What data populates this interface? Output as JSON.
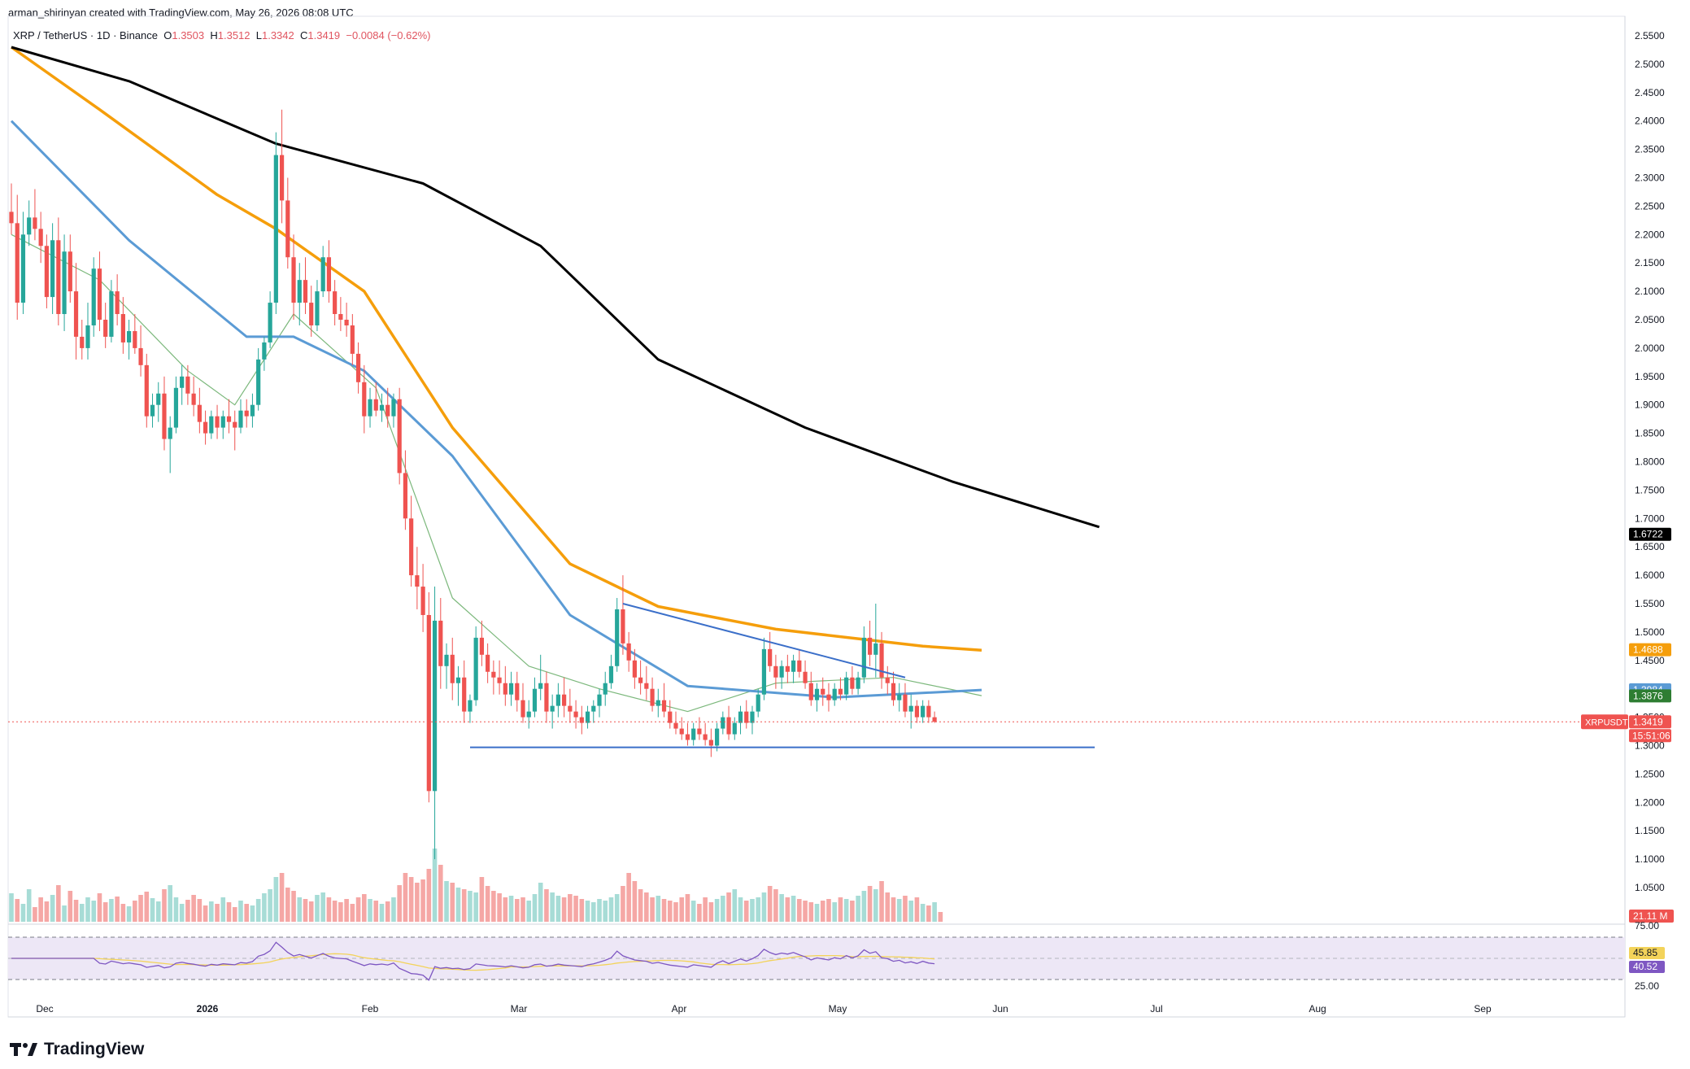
{
  "header": {
    "credit": "arman_shirinyan created with TradingView.com, May 26, 2026 08:08 UTC",
    "symbol_line": "XRP / TetherUS · 1D · Binance",
    "o_label": "O",
    "o_value": "1.3503",
    "h_label": "H",
    "h_value": "1.3512",
    "l_label": "L",
    "l_value": "1.3342",
    "c_label": "C",
    "c_value": "1.3419",
    "change": "−0.0084 (−0.62%)"
  },
  "brand": {
    "name": "TradingView",
    "icon": "tradingview-logo-icon"
  },
  "colors": {
    "up": "#26a69a",
    "down": "#ef5350",
    "up_vol": "#a7dcd6",
    "down_vol": "#f5a7a5",
    "sma200": "#000000",
    "sma100": "#f59e0b",
    "sma50": "#5b9bd5",
    "sma20": "#7cb87c",
    "trendline": "#3b6fc9",
    "rsi": "#7e57c2",
    "rsi_ma": "#f3d35a",
    "rsi_band": "#ede7f6"
  },
  "chart_data": {
    "type": "candlestick",
    "symbol": "XRPUSDT",
    "timeframe": "1D",
    "x_ticks": [
      "Dec",
      "2026",
      "Feb",
      "Mar",
      "Apr",
      "May",
      "Jun",
      "Jul",
      "Aug",
      "Sep"
    ],
    "y_ticks": [
      "2.5500",
      "2.5000",
      "2.4500",
      "2.4000",
      "2.3500",
      "2.3000",
      "2.2500",
      "2.2000",
      "2.1500",
      "2.1000",
      "2.0500",
      "2.0000",
      "1.9500",
      "1.9000",
      "1.8500",
      "1.8000",
      "1.7500",
      "1.7000",
      "1.6500",
      "1.6000",
      "1.5500",
      "1.5000",
      "1.4500",
      "1.4000",
      "1.3500",
      "1.3000",
      "1.2500",
      "1.2000",
      "1.1500",
      "1.1000",
      "1.0500"
    ],
    "y_range": [
      1.05,
      2.56
    ],
    "axis_labels": [
      {
        "text": "1.6722",
        "value": 1.6722,
        "color": "#000000",
        "text_color": "#ffffff"
      },
      {
        "text": "1.4688",
        "value": 1.4688,
        "color": "#f59e0b",
        "text_color": "#ffffff"
      },
      {
        "text": "1.3984",
        "value": 1.3984,
        "color": "#5b9bd5",
        "text_color": "#ffffff"
      },
      {
        "text": "1.3876",
        "value": 1.3876,
        "color": "#2e7d32",
        "text_color": "#ffffff"
      },
      {
        "text": "1.3419",
        "value": 1.3419,
        "color": "#ef5350",
        "text_color": "#ffffff"
      }
    ],
    "price_tag": {
      "symbol": "XRPUSDT",
      "price": "1.3419",
      "countdown": "15:51:06"
    },
    "volume_label": "21.11 M",
    "rsi": {
      "ticks": [
        "75.00",
        "25.00"
      ],
      "value_ma": "45.85",
      "value": "40.52",
      "upper": 70,
      "lower": 30
    },
    "candles": [
      [
        2.24,
        2.29,
        2.2,
        2.22
      ],
      [
        2.22,
        2.27,
        2.05,
        2.08
      ],
      [
        2.08,
        2.24,
        2.06,
        2.2
      ],
      [
        2.2,
        2.26,
        2.18,
        2.23
      ],
      [
        2.23,
        2.28,
        2.19,
        2.21
      ],
      [
        2.21,
        2.24,
        2.15,
        2.18
      ],
      [
        2.18,
        2.2,
        2.07,
        2.09
      ],
      [
        2.09,
        2.22,
        2.06,
        2.19
      ],
      [
        2.19,
        2.23,
        2.04,
        2.06
      ],
      [
        2.06,
        2.2,
        2.03,
        2.17
      ],
      [
        2.17,
        2.2,
        2.08,
        2.1
      ],
      [
        2.1,
        2.15,
        1.98,
        2.02
      ],
      [
        2.02,
        2.05,
        1.98,
        2.0
      ],
      [
        2.0,
        2.08,
        1.98,
        2.04
      ],
      [
        2.04,
        2.16,
        2.02,
        2.14
      ],
      [
        2.14,
        2.17,
        2.03,
        2.05
      ],
      [
        2.05,
        2.08,
        2.0,
        2.02
      ],
      [
        2.02,
        2.12,
        2.01,
        2.1
      ],
      [
        2.1,
        2.13,
        2.04,
        2.06
      ],
      [
        2.06,
        2.09,
        1.99,
        2.01
      ],
      [
        2.01,
        2.05,
        1.98,
        2.03
      ],
      [
        2.03,
        2.06,
        1.99,
        2.0
      ],
      [
        2.0,
        2.04,
        1.95,
        1.97
      ],
      [
        1.97,
        1.99,
        1.86,
        1.88
      ],
      [
        1.88,
        1.92,
        1.86,
        1.9
      ],
      [
        1.9,
        1.94,
        1.87,
        1.92
      ],
      [
        1.92,
        1.95,
        1.82,
        1.84
      ],
      [
        1.84,
        1.88,
        1.78,
        1.86
      ],
      [
        1.86,
        1.95,
        1.85,
        1.93
      ],
      [
        1.93,
        1.97,
        1.9,
        1.95
      ],
      [
        1.95,
        1.97,
        1.9,
        1.92
      ],
      [
        1.92,
        1.95,
        1.88,
        1.9
      ],
      [
        1.9,
        1.93,
        1.85,
        1.87
      ],
      [
        1.87,
        1.89,
        1.83,
        1.85
      ],
      [
        1.85,
        1.89,
        1.84,
        1.88
      ],
      [
        1.88,
        1.9,
        1.84,
        1.86
      ],
      [
        1.86,
        1.89,
        1.84,
        1.88
      ],
      [
        1.88,
        1.91,
        1.85,
        1.87
      ],
      [
        1.87,
        1.89,
        1.82,
        1.86
      ],
      [
        1.86,
        1.91,
        1.85,
        1.89
      ],
      [
        1.89,
        1.91,
        1.86,
        1.88
      ],
      [
        1.88,
        1.92,
        1.86,
        1.9
      ],
      [
        1.9,
        2.0,
        1.89,
        1.98
      ],
      [
        1.98,
        2.02,
        1.96,
        2.01
      ],
      [
        2.01,
        2.1,
        2.0,
        2.08
      ],
      [
        2.08,
        2.38,
        2.06,
        2.34
      ],
      [
        2.34,
        2.42,
        2.22,
        2.26
      ],
      [
        2.26,
        2.3,
        2.14,
        2.16
      ],
      [
        2.16,
        2.2,
        2.05,
        2.08
      ],
      [
        2.08,
        2.15,
        2.04,
        2.12
      ],
      [
        2.12,
        2.16,
        2.06,
        2.08
      ],
      [
        2.08,
        2.11,
        2.02,
        2.04
      ],
      [
        2.04,
        2.12,
        2.03,
        2.1
      ],
      [
        2.1,
        2.18,
        2.09,
        2.16
      ],
      [
        2.16,
        2.19,
        2.08,
        2.1
      ],
      [
        2.1,
        2.12,
        2.04,
        2.06
      ],
      [
        2.06,
        2.09,
        2.03,
        2.05
      ],
      [
        2.05,
        2.08,
        2.02,
        2.04
      ],
      [
        2.04,
        2.06,
        1.97,
        1.99
      ],
      [
        1.99,
        2.01,
        1.92,
        1.94
      ],
      [
        1.94,
        1.97,
        1.85,
        1.88
      ],
      [
        1.88,
        1.93,
        1.86,
        1.91
      ],
      [
        1.91,
        1.94,
        1.88,
        1.89
      ],
      [
        1.89,
        1.92,
        1.87,
        1.9
      ],
      [
        1.9,
        1.93,
        1.86,
        1.88
      ],
      [
        1.88,
        1.92,
        1.86,
        1.91
      ],
      [
        1.91,
        1.93,
        1.76,
        1.78
      ],
      [
        1.78,
        1.82,
        1.68,
        1.7
      ],
      [
        1.7,
        1.74,
        1.58,
        1.6
      ],
      [
        1.6,
        1.65,
        1.54,
        1.58
      ],
      [
        1.58,
        1.62,
        1.5,
        1.53
      ],
      [
        1.53,
        1.57,
        1.2,
        1.22
      ],
      [
        1.22,
        1.58,
        1.1,
        1.52
      ],
      [
        1.52,
        1.56,
        1.4,
        1.44
      ],
      [
        1.44,
        1.48,
        1.4,
        1.46
      ],
      [
        1.46,
        1.49,
        1.38,
        1.41
      ],
      [
        1.41,
        1.44,
        1.37,
        1.42
      ],
      [
        1.42,
        1.45,
        1.34,
        1.36
      ],
      [
        1.36,
        1.39,
        1.34,
        1.38
      ],
      [
        1.38,
        1.51,
        1.37,
        1.49
      ],
      [
        1.49,
        1.52,
        1.44,
        1.46
      ],
      [
        1.46,
        1.48,
        1.41,
        1.43
      ],
      [
        1.43,
        1.45,
        1.39,
        1.42
      ],
      [
        1.42,
        1.45,
        1.39,
        1.41
      ],
      [
        1.41,
        1.44,
        1.37,
        1.39
      ],
      [
        1.39,
        1.43,
        1.37,
        1.41
      ],
      [
        1.41,
        1.43,
        1.36,
        1.38
      ],
      [
        1.38,
        1.41,
        1.34,
        1.35
      ],
      [
        1.35,
        1.38,
        1.33,
        1.36
      ],
      [
        1.36,
        1.42,
        1.35,
        1.4
      ],
      [
        1.4,
        1.46,
        1.38,
        1.41
      ],
      [
        1.41,
        1.43,
        1.34,
        1.36
      ],
      [
        1.36,
        1.39,
        1.33,
        1.37
      ],
      [
        1.37,
        1.41,
        1.35,
        1.39
      ],
      [
        1.39,
        1.42,
        1.35,
        1.37
      ],
      [
        1.37,
        1.4,
        1.34,
        1.36
      ],
      [
        1.36,
        1.38,
        1.33,
        1.35
      ],
      [
        1.35,
        1.37,
        1.32,
        1.34
      ],
      [
        1.34,
        1.37,
        1.33,
        1.36
      ],
      [
        1.36,
        1.38,
        1.34,
        1.37
      ],
      [
        1.37,
        1.4,
        1.35,
        1.39
      ],
      [
        1.39,
        1.43,
        1.37,
        1.41
      ],
      [
        1.41,
        1.46,
        1.4,
        1.44
      ],
      [
        1.44,
        1.56,
        1.43,
        1.54
      ],
      [
        1.54,
        1.6,
        1.46,
        1.48
      ],
      [
        1.48,
        1.5,
        1.43,
        1.45
      ],
      [
        1.45,
        1.47,
        1.4,
        1.42
      ],
      [
        1.42,
        1.45,
        1.39,
        1.41
      ],
      [
        1.41,
        1.44,
        1.38,
        1.4
      ],
      [
        1.4,
        1.42,
        1.36,
        1.37
      ],
      [
        1.37,
        1.4,
        1.35,
        1.38
      ],
      [
        1.38,
        1.41,
        1.35,
        1.36
      ],
      [
        1.36,
        1.38,
        1.33,
        1.34
      ],
      [
        1.34,
        1.36,
        1.32,
        1.33
      ],
      [
        1.33,
        1.35,
        1.31,
        1.32
      ],
      [
        1.32,
        1.34,
        1.3,
        1.31
      ],
      [
        1.31,
        1.34,
        1.3,
        1.33
      ],
      [
        1.33,
        1.35,
        1.31,
        1.32
      ],
      [
        1.32,
        1.34,
        1.3,
        1.31
      ],
      [
        1.31,
        1.33,
        1.28,
        1.3
      ],
      [
        1.3,
        1.34,
        1.29,
        1.33
      ],
      [
        1.33,
        1.36,
        1.32,
        1.35
      ],
      [
        1.35,
        1.37,
        1.31,
        1.32
      ],
      [
        1.32,
        1.35,
        1.31,
        1.34
      ],
      [
        1.34,
        1.37,
        1.32,
        1.36
      ],
      [
        1.36,
        1.38,
        1.33,
        1.34
      ],
      [
        1.34,
        1.37,
        1.32,
        1.36
      ],
      [
        1.36,
        1.4,
        1.35,
        1.39
      ],
      [
        1.39,
        1.49,
        1.38,
        1.47
      ],
      [
        1.47,
        1.5,
        1.43,
        1.44
      ],
      [
        1.44,
        1.46,
        1.4,
        1.42
      ],
      [
        1.42,
        1.45,
        1.4,
        1.44
      ],
      [
        1.44,
        1.46,
        1.41,
        1.43
      ],
      [
        1.43,
        1.46,
        1.41,
        1.45
      ],
      [
        1.45,
        1.47,
        1.42,
        1.43
      ],
      [
        1.43,
        1.45,
        1.4,
        1.41
      ],
      [
        1.41,
        1.43,
        1.37,
        1.38
      ],
      [
        1.38,
        1.41,
        1.36,
        1.4
      ],
      [
        1.4,
        1.42,
        1.37,
        1.39
      ],
      [
        1.39,
        1.41,
        1.36,
        1.38
      ],
      [
        1.38,
        1.41,
        1.37,
        1.4
      ],
      [
        1.4,
        1.42,
        1.38,
        1.39
      ],
      [
        1.39,
        1.43,
        1.38,
        1.42
      ],
      [
        1.42,
        1.44,
        1.39,
        1.4
      ],
      [
        1.4,
        1.43,
        1.39,
        1.42
      ],
      [
        1.42,
        1.51,
        1.41,
        1.49
      ],
      [
        1.49,
        1.52,
        1.44,
        1.46
      ],
      [
        1.46,
        1.55,
        1.42,
        1.48
      ],
      [
        1.48,
        1.5,
        1.4,
        1.42
      ],
      [
        1.42,
        1.44,
        1.39,
        1.41
      ],
      [
        1.41,
        1.43,
        1.37,
        1.38
      ],
      [
        1.38,
        1.41,
        1.36,
        1.39
      ],
      [
        1.39,
        1.41,
        1.35,
        1.36
      ],
      [
        1.36,
        1.39,
        1.33,
        1.37
      ],
      [
        1.37,
        1.38,
        1.34,
        1.35
      ],
      [
        1.35,
        1.38,
        1.34,
        1.37
      ],
      [
        1.37,
        1.38,
        1.34,
        1.35
      ],
      [
        1.35,
        1.36,
        1.34,
        1.342
      ]
    ],
    "volumes": [
      35,
      28,
      22,
      40,
      18,
      30,
      25,
      33,
      45,
      20,
      38,
      27,
      22,
      30,
      26,
      35,
      24,
      28,
      31,
      22,
      19,
      26,
      33,
      37,
      29,
      25,
      40,
      45,
      30,
      22,
      27,
      33,
      28,
      20,
      25,
      22,
      30,
      24,
      18,
      26,
      22,
      20,
      28,
      35,
      40,
      55,
      60,
      42,
      38,
      30,
      28,
      25,
      33,
      36,
      30,
      26,
      24,
      28,
      22,
      30,
      34,
      28,
      26,
      22,
      25,
      30,
      45,
      60,
      55,
      48,
      52,
      65,
      90,
      70,
      50,
      48,
      42,
      40,
      38,
      36,
      55,
      44,
      38,
      35,
      30,
      32,
      28,
      30,
      26,
      34,
      48,
      40,
      36,
      32,
      30,
      34,
      32,
      28,
      26,
      24,
      28,
      26,
      30,
      34,
      44,
      60,
      50,
      40,
      36,
      30,
      32,
      28,
      26,
      24,
      30,
      34,
      26,
      22,
      30,
      24,
      28,
      32,
      36,
      40,
      30,
      26,
      28,
      30,
      36,
      44,
      40,
      34,
      30,
      32,
      28,
      26,
      24,
      22,
      26,
      28,
      24,
      30,
      28,
      26,
      32,
      38,
      44,
      40,
      50,
      36,
      30,
      28,
      32,
      26,
      30,
      22,
      20,
      24,
      12
    ],
    "volumes_up": [
      1,
      0,
      1,
      1,
      0,
      0,
      0,
      1,
      0,
      1,
      0,
      0,
      1,
      1,
      1,
      0,
      0,
      1,
      0,
      0,
      1,
      0,
      0,
      0,
      1,
      1,
      0,
      1,
      1,
      1,
      0,
      0,
      0,
      0,
      1,
      0,
      1,
      0,
      0,
      1,
      0,
      1,
      1,
      1,
      1,
      1,
      0,
      0,
      0,
      1,
      0,
      0,
      1,
      1,
      0,
      0,
      0,
      0,
      0,
      0,
      0,
      1,
      0,
      1,
      0,
      1,
      0,
      0,
      0,
      0,
      0,
      0,
      1,
      0,
      1,
      0,
      1,
      0,
      1,
      1,
      0,
      0,
      0,
      0,
      0,
      1,
      0,
      0,
      1,
      1,
      1,
      0,
      1,
      1,
      0,
      0,
      0,
      0,
      1,
      1,
      1,
      1,
      1,
      1,
      0,
      0,
      0,
      0,
      0,
      0,
      1,
      0,
      0,
      0,
      0,
      0,
      1,
      0,
      0,
      0,
      1,
      1,
      0,
      1,
      1,
      0,
      1,
      1,
      1,
      0,
      0,
      1,
      0,
      1,
      0,
      0,
      0,
      1,
      0,
      0,
      1,
      0,
      1,
      0,
      1,
      1,
      0,
      1,
      0,
      0,
      0,
      1,
      0,
      1,
      0,
      1,
      0,
      1,
      0
    ],
    "sma200": [
      [
        0,
        2.53
      ],
      [
        20,
        2.47
      ],
      [
        45,
        2.36
      ],
      [
        70,
        2.29
      ],
      [
        90,
        2.18
      ],
      [
        110,
        1.98
      ],
      [
        135,
        1.86
      ],
      [
        160,
        1.765
      ],
      [
        185,
        1.685
      ]
    ],
    "sma100": [
      [
        0,
        2.53
      ],
      [
        15,
        2.42
      ],
      [
        35,
        2.27
      ],
      [
        45,
        2.21
      ],
      [
        60,
        2.1
      ],
      [
        75,
        1.86
      ],
      [
        95,
        1.62
      ],
      [
        110,
        1.545
      ],
      [
        130,
        1.505
      ],
      [
        155,
        1.475
      ],
      [
        165,
        1.468
      ]
    ],
    "sma50": [
      [
        0,
        2.4
      ],
      [
        20,
        2.19
      ],
      [
        40,
        2.02
      ],
      [
        48,
        2.02
      ],
      [
        60,
        1.96
      ],
      [
        75,
        1.81
      ],
      [
        95,
        1.53
      ],
      [
        115,
        1.405
      ],
      [
        140,
        1.385
      ],
      [
        165,
        1.398
      ]
    ],
    "sma20": [
      [
        0,
        2.2
      ],
      [
        15,
        2.12
      ],
      [
        30,
        1.96
      ],
      [
        38,
        1.9
      ],
      [
        48,
        2.06
      ],
      [
        62,
        1.93
      ],
      [
        75,
        1.56
      ],
      [
        88,
        1.44
      ],
      [
        100,
        1.4
      ],
      [
        115,
        1.36
      ],
      [
        130,
        1.41
      ],
      [
        150,
        1.42
      ],
      [
        165,
        1.388
      ]
    ],
    "trendline_descending": [
      [
        104,
        1.55
      ],
      [
        152,
        1.42
      ]
    ],
    "support_line": [
      [
        80,
        1.297
      ],
      [
        190,
        1.297
      ]
    ]
  }
}
